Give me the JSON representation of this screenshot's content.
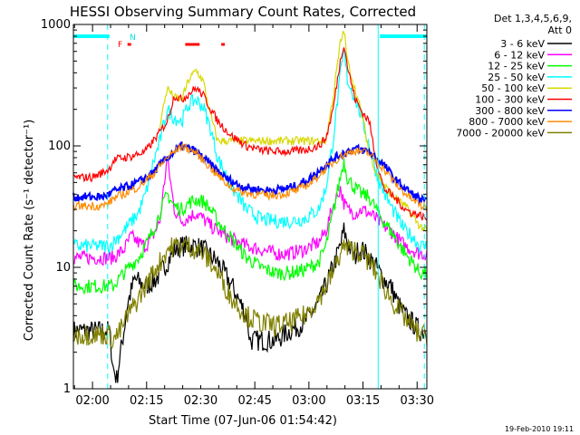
{
  "chart_data": {
    "type": "line",
    "title": "HESSI Observing Summary Count Rates, Corrected",
    "xlabel": "Start Time (07-Jun-06 01:54:42)",
    "ylabel": "Corrected Count Rate (s⁻¹ detector⁻¹)",
    "yscale": "log",
    "ylim": [
      1,
      1000
    ],
    "xlim_minutes": [
      0,
      98
    ],
    "x_tick_labels": [
      "02:00",
      "02:15",
      "02:30",
      "02:45",
      "03:00",
      "03:15",
      "03:30"
    ],
    "x_tick_minutes": [
      5.3,
      20.3,
      35.3,
      50.3,
      65.3,
      80.3,
      95.3
    ],
    "y_tick_labels": [
      "1",
      "10",
      "100",
      "1000"
    ],
    "y_tick_values": [
      1,
      10,
      100,
      1000
    ],
    "legend": {
      "placement": "right",
      "header": [
        "Det 1,3,4,5,6,9,",
        "Att 0"
      ]
    },
    "flag_labels": [
      "F",
      "N"
    ],
    "footer": "19-Feb-2010 19:11",
    "series": [
      {
        "name": "3 - 6 keV",
        "color": "#000000",
        "x": [
          0,
          10,
          11,
          12,
          14,
          15,
          17,
          20,
          23,
          26,
          28,
          30,
          32,
          34,
          36,
          40,
          44,
          48,
          49,
          52,
          56,
          60,
          64,
          68,
          72,
          74,
          75,
          76,
          78,
          79,
          80,
          82,
          84,
          86,
          88,
          90,
          92,
          94,
          96,
          97,
          98
        ],
        "y": [
          3,
          3,
          1.5,
          1.2,
          3,
          5,
          8,
          7,
          8,
          11,
          14,
          15,
          15,
          15,
          14,
          11,
          7,
          4,
          2.5,
          2.5,
          2.5,
          3,
          3.5,
          5,
          10,
          15,
          20,
          16,
          12,
          14,
          14,
          12,
          10,
          8,
          7,
          5,
          4,
          3.5,
          3,
          3,
          3
        ]
      },
      {
        "name": "6 - 12 keV",
        "color": "#ff00ff",
        "x": [
          0,
          10,
          11,
          14,
          16,
          18,
          20,
          22,
          24,
          26,
          28,
          30,
          32,
          34,
          36,
          38,
          40,
          44,
          48,
          52,
          56,
          60,
          64,
          68,
          70,
          72,
          74,
          75,
          76,
          78,
          80,
          82,
          84,
          86,
          88,
          90,
          92,
          94,
          96,
          98
        ],
        "y": [
          12,
          12,
          12,
          14,
          18,
          16,
          15,
          18,
          24,
          80,
          30,
          24,
          26,
          28,
          25,
          22,
          20,
          17,
          15,
          14,
          13,
          13,
          14,
          16,
          20,
          32,
          45,
          34,
          30,
          28,
          30,
          28,
          25,
          22,
          20,
          17,
          15,
          14,
          13,
          13
        ]
      },
      {
        "name": "12 - 25 keV",
        "color": "#00ff00",
        "x": [
          0,
          10,
          11,
          14,
          18,
          20,
          22,
          24,
          26,
          28,
          30,
          32,
          34,
          36,
          38,
          40,
          44,
          48,
          52,
          56,
          60,
          64,
          68,
          70,
          72,
          74,
          75,
          76,
          78,
          80,
          82,
          84,
          86,
          88,
          90,
          92,
          94,
          96,
          98
        ],
        "y": [
          7,
          7,
          7,
          9,
          12,
          15,
          20,
          28,
          40,
          32,
          30,
          34,
          36,
          35,
          30,
          24,
          17,
          12,
          10,
          9,
          9,
          9.5,
          11,
          15,
          28,
          55,
          75,
          55,
          45,
          40,
          38,
          30,
          24,
          20,
          16,
          13,
          11,
          9,
          9
        ]
      },
      {
        "name": "25 - 50 keV",
        "color": "#00ffff",
        "x": [
          0,
          10,
          11,
          14,
          18,
          20,
          22,
          24,
          26,
          28,
          30,
          32,
          34,
          36,
          38,
          40,
          44,
          48,
          52,
          56,
          60,
          64,
          68,
          70,
          72,
          74,
          75,
          76,
          78,
          80,
          82,
          84,
          86,
          88,
          90,
          92,
          94,
          96,
          98
        ],
        "y": [
          15,
          15,
          16,
          20,
          28,
          40,
          70,
          110,
          200,
          170,
          160,
          220,
          240,
          210,
          140,
          80,
          45,
          30,
          25,
          24,
          24,
          25,
          30,
          45,
          110,
          380,
          600,
          350,
          250,
          170,
          100,
          60,
          42,
          32,
          25,
          20,
          18,
          15,
          15
        ]
      },
      {
        "name": "50 - 100 keV",
        "color": "#d8d800",
        "x": [
          24,
          26,
          28,
          30,
          32,
          34,
          36,
          38,
          40,
          70,
          72,
          74,
          75,
          76,
          78,
          80,
          82,
          84,
          88,
          92,
          96,
          98
        ],
        "y": [
          150,
          300,
          250,
          240,
          350,
          420,
          340,
          180,
          110,
          110,
          250,
          700,
          900,
          500,
          300,
          180,
          90,
          60,
          40,
          32,
          22,
          20
        ]
      },
      {
        "name": "100 - 300 keV",
        "color": "#ff0000",
        "x": [
          0,
          5,
          8,
          10,
          11,
          12,
          16,
          20,
          24,
          26,
          28,
          30,
          32,
          34,
          36,
          40,
          44,
          48,
          52,
          56,
          60,
          64,
          68,
          70,
          72,
          74,
          75,
          76,
          78,
          80,
          82,
          84,
          86,
          88,
          90,
          92,
          94,
          96,
          98
        ],
        "y": [
          55,
          55,
          60,
          65,
          75,
          78,
          82,
          90,
          130,
          160,
          260,
          240,
          270,
          300,
          260,
          160,
          120,
          100,
          92,
          90,
          90,
          92,
          100,
          115,
          200,
          500,
          700,
          450,
          250,
          190,
          160,
          75,
          45,
          40,
          35,
          30,
          28,
          27,
          25
        ]
      },
      {
        "name": "300 - 800 keV",
        "color": "#0000ff",
        "x": [
          0,
          8,
          10,
          11,
          14,
          18,
          22,
          26,
          30,
          34,
          38,
          42,
          46,
          50,
          54,
          58,
          62,
          66,
          70,
          74,
          78,
          82,
          86,
          90,
          94,
          98
        ],
        "y": [
          38,
          38,
          40,
          42,
          45,
          50,
          60,
          80,
          100,
          90,
          70,
          55,
          47,
          44,
          43,
          44,
          47,
          55,
          70,
          85,
          95,
          90,
          70,
          50,
          40,
          34
        ]
      },
      {
        "name": "800 - 7000 keV",
        "color": "#ff8c00",
        "x": [
          0,
          8,
          10,
          11,
          14,
          18,
          22,
          26,
          30,
          34,
          38,
          42,
          46,
          50,
          54,
          58,
          62,
          66,
          70,
          74,
          78,
          82,
          86,
          90,
          94,
          98
        ],
        "y": [
          32,
          32,
          34,
          37,
          40,
          46,
          58,
          80,
          100,
          88,
          66,
          50,
          42,
          40,
          39,
          40,
          43,
          50,
          65,
          82,
          92,
          87,
          65,
          46,
          36,
          30
        ]
      },
      {
        "name": "7000 - 20000 keV",
        "color": "#808000",
        "x": [
          0,
          10,
          11,
          13,
          15,
          18,
          20,
          22,
          24,
          26,
          28,
          30,
          32,
          34,
          36,
          38,
          40,
          44,
          48,
          52,
          56,
          60,
          64,
          68,
          70,
          72,
          74,
          75,
          76,
          78,
          80,
          82,
          84,
          86,
          88,
          90,
          92,
          94,
          96,
          98
        ],
        "y": [
          2.8,
          2.8,
          2.5,
          3,
          4,
          5.5,
          7,
          9,
          11,
          14,
          15,
          15,
          15,
          14,
          13,
          11,
          9,
          5.5,
          4,
          3.5,
          3.3,
          3.5,
          4,
          5.5,
          7,
          9,
          13,
          15,
          14,
          14,
          13,
          11,
          9,
          7,
          5.5,
          4.5,
          3.8,
          3.2,
          2.8,
          2.8
        ]
      }
    ],
    "spacecraft_night_markers_minutes": [
      {
        "start": 0,
        "end": 10,
        "level": 800
      },
      {
        "start": 85,
        "end": 98,
        "level": 800
      }
    ],
    "attenuator_segments_minutes": [
      [
        15,
        16
      ],
      [
        31,
        35
      ],
      [
        41,
        42
      ]
    ],
    "vertical_lines_minutes": [
      {
        "x": 9.5,
        "style": "dashed"
      },
      {
        "x": 84.5,
        "style": "solid"
      },
      {
        "x": 97.3,
        "style": "dashed"
      }
    ],
    "grid": false
  }
}
